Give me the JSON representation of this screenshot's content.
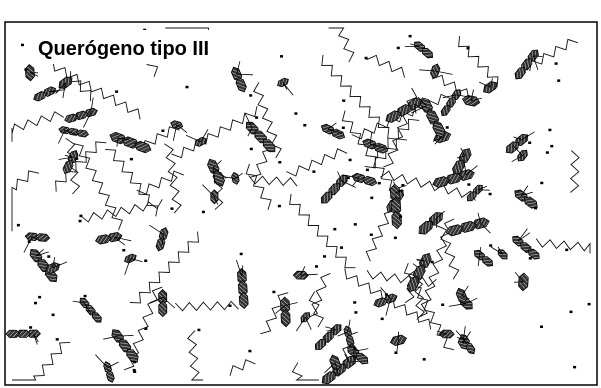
{
  "header": {
    "title": "Querógeno tipo III"
  }
}
